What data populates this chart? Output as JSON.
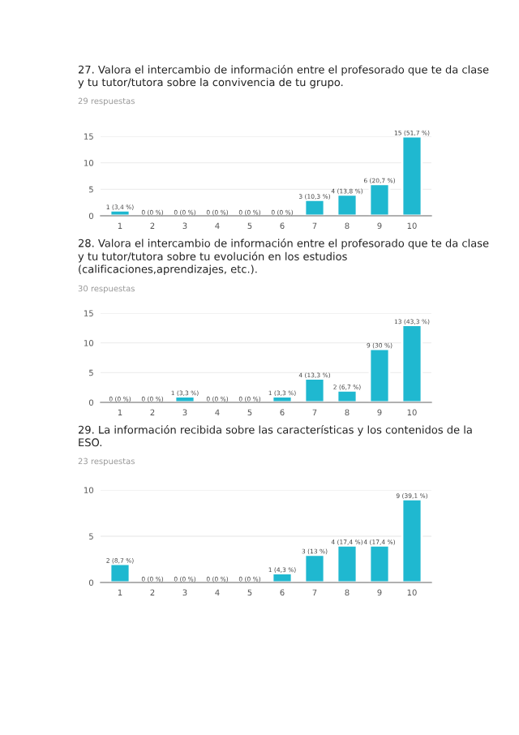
{
  "chart_data": [
    {
      "type": "bar",
      "title": "27. Valora el intercambio de información entre el profesorado que te da clase\ny tu tutor/tutora sobre la convivencia de tu grupo.",
      "subtitle": "29 respuestas",
      "categories": [
        "1",
        "2",
        "3",
        "4",
        "5",
        "6",
        "7",
        "8",
        "9",
        "10"
      ],
      "values": [
        1,
        0,
        0,
        0,
        0,
        0,
        3,
        4,
        6,
        15
      ],
      "value_labels": [
        "1 (3,4 %)",
        "0 (0 %)",
        "0 (0 %)",
        "0 (0 %)",
        "0 (0 %)",
        "0 (0 %)",
        "3 (10,3 %)",
        "4 (13,8 %)",
        "6 (20,7 %)",
        "15 (51,7 %)"
      ],
      "color": "#1fb8d0",
      "ylim": [
        0,
        15
      ],
      "yticks": [
        0,
        5,
        10,
        15
      ],
      "grid": "y"
    },
    {
      "type": "bar",
      "title": "28. Valora el intercambio de información entre el profesorado que te da clase\ny tu tutor/tutora sobre tu evolución en los estudios\n(calificaciones,aprendizajes, etc.).",
      "subtitle": "30 respuestas",
      "categories": [
        "1",
        "2",
        "3",
        "4",
        "5",
        "6",
        "7",
        "8",
        "9",
        "10"
      ],
      "values": [
        0,
        0,
        1,
        0,
        0,
        1,
        4,
        2,
        9,
        13
      ],
      "value_labels": [
        "0 (0 %)",
        "0 (0 %)",
        "1 (3,3 %)",
        "0 (0 %)",
        "0 (0 %)",
        "1 (3,3 %)",
        "4 (13,3 %)",
        "2 (6,7 %)",
        "9 (30 %)",
        "13 (43,3 %)"
      ],
      "color": "#1fb8d0",
      "ylim": [
        0,
        15
      ],
      "yticks": [
        0,
        5,
        10,
        15
      ],
      "grid": "y"
    },
    {
      "type": "bar",
      "title": "29. La información recibida sobre las características y los contenidos de la\nESO.",
      "subtitle": "23 respuestas",
      "categories": [
        "1",
        "2",
        "3",
        "4",
        "5",
        "6",
        "7",
        "8",
        "9",
        "10"
      ],
      "values": [
        2,
        0,
        0,
        0,
        0,
        1,
        3,
        4,
        4,
        9
      ],
      "value_labels": [
        "2 (8,7 %)",
        "0 (0 %)",
        "0 (0 %)",
        "0 (0 %)",
        "0 (0 %)",
        "1 (4,3 %)",
        "3 (13 %)",
        "4 (17,4 %)",
        "4 (17,4 %)",
        "9 (39,1 %)"
      ],
      "color": "#1fb8d0",
      "ylim": [
        0,
        10
      ],
      "yticks": [
        0,
        5,
        10
      ],
      "grid": "y"
    }
  ]
}
